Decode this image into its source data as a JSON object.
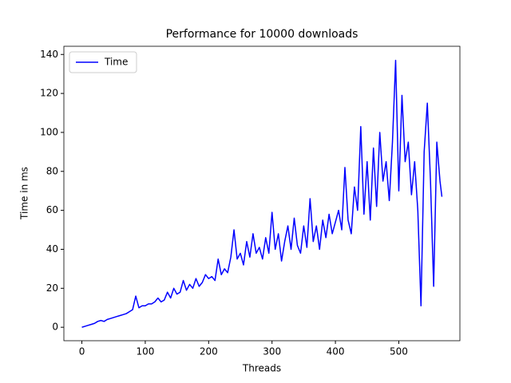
{
  "chart_data": {
    "type": "line",
    "title": "Performance for 10000 downloads",
    "x_label": "Threads",
    "y_label": "Time in ms",
    "x": [
      0,
      5,
      10,
      15,
      20,
      25,
      30,
      35,
      40,
      45,
      50,
      55,
      60,
      65,
      70,
      75,
      80,
      85,
      90,
      95,
      100,
      105,
      110,
      115,
      120,
      125,
      130,
      135,
      140,
      145,
      150,
      155,
      160,
      165,
      170,
      175,
      180,
      185,
      190,
      195,
      200,
      205,
      210,
      215,
      220,
      225,
      230,
      235,
      240,
      245,
      250,
      255,
      260,
      265,
      270,
      275,
      280,
      285,
      290,
      295,
      300,
      305,
      310,
      315,
      320,
      325,
      330,
      335,
      340,
      345,
      350,
      355,
      360,
      365,
      370,
      375,
      380,
      385,
      390,
      395,
      400,
      405,
      410,
      415,
      420,
      425,
      430,
      435,
      440,
      445,
      450,
      455,
      460,
      465,
      470,
      475,
      480,
      485,
      490,
      495,
      500,
      505,
      510,
      515,
      520,
      525,
      530,
      535,
      540,
      545,
      550,
      555,
      560,
      565,
      568
    ],
    "series": [
      {
        "name": "Time",
        "color": "#0000ff",
        "values": [
          0,
          0.5,
          1,
          1.5,
          2,
          3,
          3.5,
          3,
          4,
          4.5,
          5,
          5.5,
          6,
          6.5,
          7,
          8,
          9,
          16,
          10,
          11,
          11,
          12,
          12,
          13,
          15,
          13,
          14,
          18,
          15,
          20,
          17,
          18,
          24,
          19,
          22,
          20,
          25,
          21,
          23,
          27,
          25,
          26,
          24,
          35,
          27,
          30,
          28,
          36,
          50,
          35,
          38,
          32,
          44,
          36,
          48,
          38,
          41,
          35,
          46,
          38,
          59,
          40,
          48,
          34,
          44,
          52,
          40,
          56,
          42,
          38,
          52,
          41,
          66,
          44,
          52,
          40,
          55,
          46,
          58,
          48,
          54,
          60,
          50,
          82,
          55,
          48,
          72,
          60,
          103,
          58,
          85,
          55,
          92,
          62,
          100,
          75,
          85,
          65,
          95,
          137,
          70,
          119,
          85,
          95,
          68,
          85,
          60,
          11,
          90,
          115,
          75,
          21,
          95,
          75,
          67
        ]
      }
    ],
    "xlim": [
      -28.4,
      596.4
    ],
    "ylim": [
      -6.9,
      144.2
    ],
    "xticks": [
      0,
      100,
      200,
      300,
      400,
      500
    ],
    "yticks": [
      0,
      20,
      40,
      60,
      80,
      100,
      120,
      140
    ],
    "legend": "upper left"
  }
}
